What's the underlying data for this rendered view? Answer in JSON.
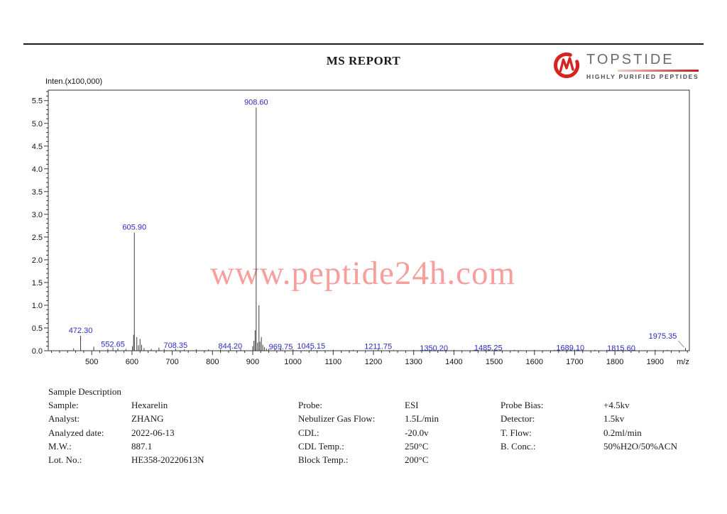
{
  "header": {
    "title": "MS REPORT",
    "logo_name": "TOPSTIDE",
    "logo_tagline": "HIGHLY PURIFIED PEPTIDES",
    "logo_color": "#d7231f"
  },
  "watermark": "www.peptide24h.com",
  "chart_data": {
    "type": "line",
    "subtype": "mass-spectrum-stick-plot",
    "title": "Inten.(x100,000)",
    "xlabel": "m/z",
    "ylabel": "Inten.(x100,000)",
    "xlim": [
      392,
      1985
    ],
    "ylim": [
      0,
      5.73
    ],
    "x_ticks": [
      500,
      600,
      700,
      800,
      900,
      1000,
      1100,
      1200,
      1300,
      1400,
      1500,
      1600,
      1700,
      1800,
      1900
    ],
    "y_ticks": [
      "0.0",
      "0.5",
      "1.0",
      "1.5",
      "2.0",
      "2.5",
      "3.0",
      "3.5",
      "4.0",
      "4.5",
      "5.0",
      "5.5"
    ],
    "x_minor_step": 20,
    "y_minor_step": 0.1,
    "grid": false,
    "peak_label_color": "#2b2bc0",
    "line_color": "#3f3f3f",
    "peaks": [
      {
        "mz": 472.3,
        "i": 0.33,
        "label": "472.30"
      },
      {
        "mz": 552.65,
        "i": 0.07,
        "label": "552.65",
        "dy": 3
      },
      {
        "mz": 605.9,
        "i": 2.6,
        "label": "605.90"
      },
      {
        "mz": 708.35,
        "i": 0.05,
        "label": "708.35",
        "dy": 3
      },
      {
        "mz": 844.2,
        "i": 0.05,
        "label": "844.20",
        "dy": 4
      },
      {
        "mz": 908.6,
        "i": 5.35,
        "label": "908.60"
      },
      {
        "mz": 969.75,
        "i": 0.06,
        "label": "969.75",
        "dy": 6
      },
      {
        "mz": 1045.15,
        "i": 0.05,
        "label": "1045.15",
        "dy": 4
      },
      {
        "mz": 1211.75,
        "i": 0.04,
        "label": "1211.75",
        "dy": 4
      },
      {
        "mz": 1350.2,
        "i": 0.03,
        "label": "1350.20",
        "dy": 6
      },
      {
        "mz": 1485.25,
        "i": 0.04,
        "label": "1485.25",
        "dy": 6
      },
      {
        "mz": 1689.1,
        "i": 0.04,
        "label": "1689.10",
        "dy": 6
      },
      {
        "mz": 1815.6,
        "i": 0.03,
        "label": "1815.60",
        "dy": 6
      },
      {
        "mz": 1975.35,
        "i": 0.06,
        "label": "1975.35",
        "dx": -32,
        "dy": -9,
        "leader": true
      }
    ],
    "minor_peaks": [
      [
        455,
        0.05
      ],
      [
        505,
        0.09
      ],
      [
        540,
        0.04
      ],
      [
        565,
        0.05
      ],
      [
        585,
        0.04
      ],
      [
        601,
        0.1
      ],
      [
        604,
        0.35
      ],
      [
        612,
        0.3
      ],
      [
        616,
        0.12
      ],
      [
        620,
        0.26
      ],
      [
        624,
        0.13
      ],
      [
        630,
        0.06
      ],
      [
        648,
        0.04
      ],
      [
        667,
        0.07
      ],
      [
        680,
        0.04
      ],
      [
        730,
        0.03
      ],
      [
        760,
        0.03
      ],
      [
        790,
        0.03
      ],
      [
        820,
        0.03
      ],
      [
        870,
        0.04
      ],
      [
        900,
        0.1
      ],
      [
        903,
        0.22
      ],
      [
        906,
        0.45
      ],
      [
        912,
        0.18
      ],
      [
        915.5,
        1.0
      ],
      [
        918,
        0.2
      ],
      [
        921.5,
        0.3
      ],
      [
        925,
        0.13
      ],
      [
        929,
        0.08
      ],
      [
        934,
        0.05
      ],
      [
        940,
        0.04
      ],
      [
        955,
        0.05
      ],
      [
        1000,
        0.03
      ],
      [
        1100,
        0.02
      ],
      [
        1150,
        0.02
      ],
      [
        1250,
        0.02
      ],
      [
        1300,
        0.02
      ],
      [
        1400,
        0.02
      ],
      [
        1450,
        0.02
      ],
      [
        1550,
        0.02
      ],
      [
        1600,
        0.02
      ],
      [
        1650,
        0.02
      ],
      [
        1750,
        0.02
      ],
      [
        1780,
        0.02
      ],
      [
        1850,
        0.02
      ],
      [
        1900,
        0.02
      ],
      [
        1930,
        0.02
      ]
    ]
  },
  "table": {
    "heading": "Sample Description",
    "rows": [
      [
        "Sample:",
        "Hexarelin",
        "Probe:",
        "ESI",
        "Probe Bias:",
        "+4.5kv"
      ],
      [
        "Analyst:",
        "ZHANG",
        "Nebulizer Gas Flow:",
        "1.5L/min",
        "Detector:",
        "1.5kv"
      ],
      [
        "Analyzed date:",
        "2022-06-13",
        "CDL:",
        "-20.0v",
        "T. Flow:",
        "0.2ml/min"
      ],
      [
        "M.W.:",
        "887.1",
        "CDL Temp.:",
        "250°C",
        "B. Conc.:",
        "50%H2O/50%ACN"
      ],
      [
        "Lot. No.:",
        "HE358-20220613N",
        "Block Temp.:",
        "200°C",
        "",
        ""
      ]
    ]
  }
}
